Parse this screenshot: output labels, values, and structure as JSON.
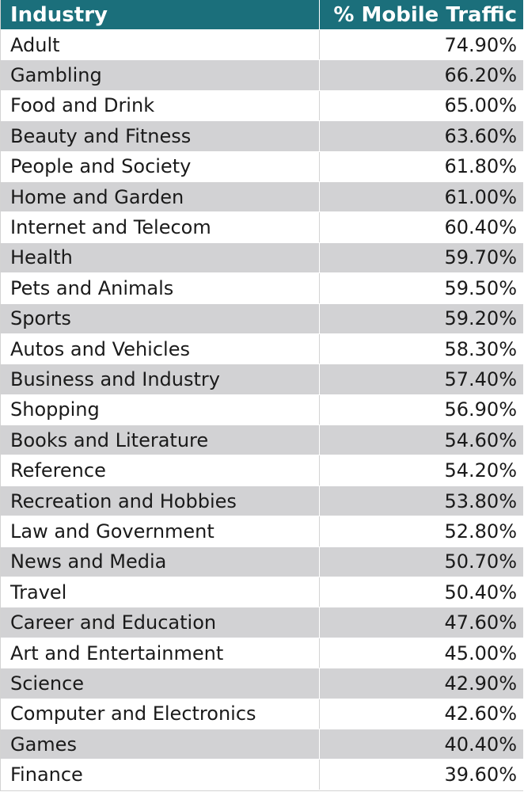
{
  "chart_data": {
    "type": "table",
    "columns": [
      "Industry",
      "% Mobile Traffic"
    ],
    "rows": [
      {
        "industry": "Adult",
        "value": "74.90%"
      },
      {
        "industry": "Gambling",
        "value": "66.20%"
      },
      {
        "industry": "Food and Drink",
        "value": "65.00%"
      },
      {
        "industry": "Beauty and Fitness",
        "value": "63.60%"
      },
      {
        "industry": "People and Society",
        "value": "61.80%"
      },
      {
        "industry": "Home and Garden",
        "value": "61.00%"
      },
      {
        "industry": "Internet and Telecom",
        "value": "60.40%"
      },
      {
        "industry": "Health",
        "value": "59.70%"
      },
      {
        "industry": "Pets and Animals",
        "value": "59.50%"
      },
      {
        "industry": "Sports",
        "value": "59.20%"
      },
      {
        "industry": "Autos and Vehicles",
        "value": "58.30%"
      },
      {
        "industry": "Business and Industry",
        "value": "57.40%"
      },
      {
        "industry": "Shopping",
        "value": "56.90%"
      },
      {
        "industry": "Books and Literature",
        "value": "54.60%"
      },
      {
        "industry": "Reference",
        "value": "54.20%"
      },
      {
        "industry": "Recreation and Hobbies",
        "value": "53.80%"
      },
      {
        "industry": "Law and Government",
        "value": "52.80%"
      },
      {
        "industry": "News and Media",
        "value": "50.70%"
      },
      {
        "industry": "Travel",
        "value": "50.40%"
      },
      {
        "industry": "Career and Education",
        "value": "47.60%"
      },
      {
        "industry": "Art and Entertainment",
        "value": "45.00%"
      },
      {
        "industry": "Science",
        "value": "42.90%"
      },
      {
        "industry": "Computer and Electronics",
        "value": "42.60%"
      },
      {
        "industry": "Games",
        "value": "40.40%"
      },
      {
        "industry": "Finance",
        "value": "39.60%"
      }
    ]
  },
  "colors": {
    "header_bg": "#1b6f7b",
    "stripe": "#d2d2d4",
    "text": "#1a1a1a"
  }
}
